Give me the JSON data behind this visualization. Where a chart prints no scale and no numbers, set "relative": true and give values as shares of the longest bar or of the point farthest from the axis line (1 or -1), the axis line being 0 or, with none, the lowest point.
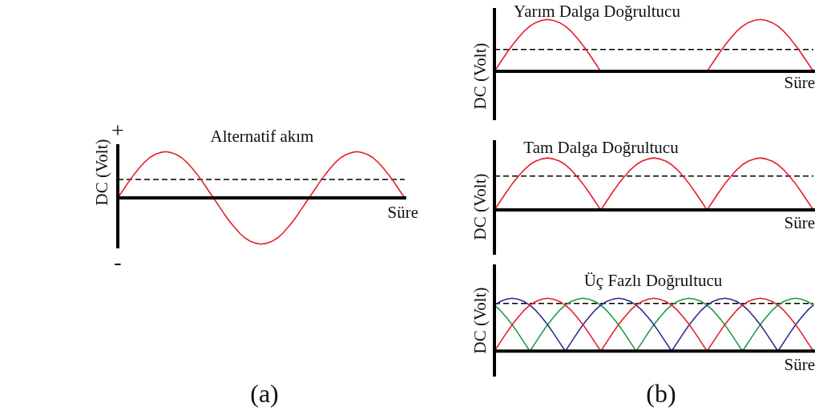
{
  "chart_data": [
    {
      "type": "line",
      "title": "Alternatif akım",
      "xlabel": "Süre",
      "ylabel": "DC (Volt)",
      "relative": true,
      "marker": "none",
      "annotations": [
        "+",
        "-",
        "(a)"
      ],
      "categories": [
        null,
        null,
        null,
        null,
        null,
        null,
        null,
        null,
        null,
        null,
        null,
        null,
        null,
        null,
        null,
        null,
        null,
        null,
        null,
        null,
        null,
        null,
        null,
        null,
        null,
        null,
        null,
        null,
        null,
        null,
        null,
        null,
        null,
        null,
        null,
        null,
        null,
        null,
        null,
        null,
        null,
        null,
        null,
        null,
        null,
        null,
        null,
        null,
        null,
        null,
        null,
        null,
        null,
        null,
        null
      ],
      "ref_lines": [
        {
          "axis": "y",
          "value": 0.4,
          "color": "#000000",
          "line_style": "dashed"
        }
      ],
      "series": [
        {
          "color": "#e5202a",
          "values": [
            0,
            0.17,
            0.34,
            0.5,
            0.64,
            0.77,
            0.87,
            0.94,
            0.98,
            1,
            0.98,
            0.94,
            0.87,
            0.77,
            0.64,
            0.5,
            0.34,
            0.17,
            0,
            -0.17,
            -0.34,
            -0.5,
            -0.64,
            -0.77,
            -0.87,
            -0.94,
            -0.98,
            -1,
            -0.98,
            -0.94,
            -0.87,
            -0.77,
            -0.64,
            -0.5,
            -0.34,
            -0.17,
            0,
            0.17,
            0.34,
            0.5,
            0.64,
            0.77,
            0.87,
            0.94,
            0.98,
            1,
            0.98,
            0.94,
            0.87,
            0.77,
            0.64,
            0.5,
            0.34,
            0.17,
            0
          ]
        }
      ]
    },
    {
      "type": "line",
      "title": "Yarım Dalga Doğrultucu",
      "xlabel": "Süre",
      "ylabel": "DC (Volt)",
      "relative": true,
      "marker": "none",
      "categories": [
        null,
        null,
        null,
        null,
        null,
        null,
        null,
        null,
        null,
        null,
        null,
        null,
        null,
        null,
        null,
        null,
        null,
        null,
        null,
        null,
        null,
        null,
        null,
        null,
        null,
        null,
        null,
        null,
        null,
        null,
        null,
        null,
        null,
        null,
        null,
        null,
        null,
        null,
        null,
        null,
        null,
        null,
        null,
        null,
        null,
        null,
        null,
        null,
        null,
        null,
        null,
        null,
        null,
        null,
        null
      ],
      "ref_lines": [
        {
          "axis": "y",
          "value": 0.42,
          "color": "#000000",
          "line_style": "dashed"
        }
      ],
      "series": [
        {
          "color": "#e5202a",
          "values": [
            0,
            0.17,
            0.34,
            0.5,
            0.64,
            0.77,
            0.87,
            0.94,
            0.98,
            1,
            0.98,
            0.94,
            0.87,
            0.77,
            0.64,
            0.5,
            0.34,
            0.17,
            0,
            0,
            0,
            0,
            0,
            0,
            0,
            0,
            0,
            0,
            0,
            0,
            0,
            0,
            0,
            0,
            0,
            0,
            0,
            0.17,
            0.34,
            0.5,
            0.64,
            0.77,
            0.87,
            0.94,
            0.98,
            1,
            0.98,
            0.94,
            0.87,
            0.77,
            0.64,
            0.5,
            0.34,
            0.17,
            0
          ]
        }
      ]
    },
    {
      "type": "line",
      "title": "Tam Dalga Doğrultucu",
      "xlabel": "Süre",
      "ylabel": "DC (Volt)",
      "relative": true,
      "marker": "none",
      "categories": [
        null,
        null,
        null,
        null,
        null,
        null,
        null,
        null,
        null,
        null,
        null,
        null,
        null,
        null,
        null,
        null,
        null,
        null,
        null,
        null,
        null,
        null,
        null,
        null,
        null,
        null,
        null,
        null,
        null,
        null,
        null,
        null,
        null,
        null,
        null,
        null,
        null,
        null,
        null,
        null,
        null,
        null,
        null,
        null,
        null,
        null,
        null,
        null,
        null,
        null,
        null,
        null,
        null,
        null,
        null
      ],
      "ref_lines": [
        {
          "axis": "y",
          "value": 0.65,
          "color": "#000000",
          "line_style": "dashed"
        }
      ],
      "series": [
        {
          "color": "#e5202a",
          "values": [
            0,
            0.17,
            0.34,
            0.5,
            0.64,
            0.77,
            0.87,
            0.94,
            0.98,
            1,
            0.98,
            0.94,
            0.87,
            0.77,
            0.64,
            0.5,
            0.34,
            0.17,
            0,
            0.17,
            0.34,
            0.5,
            0.64,
            0.77,
            0.87,
            0.94,
            0.98,
            1,
            0.98,
            0.94,
            0.87,
            0.77,
            0.64,
            0.5,
            0.34,
            0.17,
            0,
            0.17,
            0.34,
            0.5,
            0.64,
            0.77,
            0.87,
            0.94,
            0.98,
            1,
            0.98,
            0.94,
            0.87,
            0.77,
            0.64,
            0.5,
            0.34,
            0.17,
            0
          ]
        }
      ]
    },
    {
      "type": "line",
      "title": "Üç Fazlı Doğrultucu",
      "xlabel": "Süre",
      "ylabel": "DC (Volt)",
      "relative": true,
      "marker": "none",
      "annotations": [
        "(b)"
      ],
      "categories": [
        null,
        null,
        null,
        null,
        null,
        null,
        null,
        null,
        null,
        null,
        null,
        null,
        null,
        null,
        null,
        null,
        null,
        null,
        null,
        null,
        null,
        null,
        null,
        null,
        null,
        null,
        null,
        null,
        null,
        null,
        null,
        null,
        null,
        null,
        null,
        null,
        null,
        null,
        null,
        null,
        null,
        null,
        null,
        null,
        null,
        null,
        null,
        null,
        null,
        null,
        null,
        null,
        null,
        null,
        null
      ],
      "ref_lines": [
        {
          "axis": "y",
          "value": 0.9,
          "color": "#000000",
          "line_style": "dashed"
        }
      ],
      "series": [
        {
          "color": "#e5202a",
          "values": [
            0,
            0.17,
            0.34,
            0.5,
            0.64,
            0.77,
            0.87,
            0.94,
            0.98,
            1,
            0.98,
            0.94,
            0.87,
            0.77,
            0.64,
            0.5,
            0.34,
            0.17,
            0,
            0.17,
            0.34,
            0.5,
            0.64,
            0.77,
            0.87,
            0.94,
            0.98,
            1,
            0.98,
            0.94,
            0.87,
            0.77,
            0.64,
            0.5,
            0.34,
            0.17,
            0,
            0.17,
            0.34,
            0.5,
            0.64,
            0.77,
            0.87,
            0.94,
            0.98,
            1,
            0.98,
            0.94,
            0.87,
            0.77,
            0.64,
            0.5,
            0.34,
            0.17,
            0
          ]
        },
        {
          "color": "#2b2e8c",
          "values": [
            0.87,
            0.94,
            0.98,
            1,
            0.98,
            0.94,
            0.87,
            0.77,
            0.64,
            0.5,
            0.34,
            0.17,
            0,
            0.17,
            0.34,
            0.5,
            0.64,
            0.77,
            0.87,
            0.94,
            0.98,
            1,
            0.98,
            0.94,
            0.87,
            0.77,
            0.64,
            0.5,
            0.34,
            0.17,
            0,
            0.17,
            0.34,
            0.5,
            0.64,
            0.77,
            0.87,
            0.94,
            0.98,
            1,
            0.98,
            0.94,
            0.87,
            0.77,
            0.64,
            0.5,
            0.34,
            0.17,
            0,
            0.17,
            0.34,
            0.5,
            0.64,
            0.77,
            0.87
          ]
        },
        {
          "color": "#1e9a48",
          "values": [
            0.87,
            0.77,
            0.64,
            0.5,
            0.34,
            0.17,
            0,
            0.17,
            0.34,
            0.5,
            0.64,
            0.77,
            0.87,
            0.94,
            0.98,
            1,
            0.98,
            0.94,
            0.87,
            0.77,
            0.64,
            0.5,
            0.34,
            0.17,
            0,
            0.17,
            0.34,
            0.5,
            0.64,
            0.77,
            0.87,
            0.94,
            0.98,
            1,
            0.98,
            0.94,
            0.87,
            0.77,
            0.64,
            0.5,
            0.34,
            0.17,
            0,
            0.17,
            0.34,
            0.5,
            0.64,
            0.77,
            0.87,
            0.94,
            0.98,
            1,
            0.98,
            0.94,
            0.87
          ]
        }
      ]
    }
  ]
}
